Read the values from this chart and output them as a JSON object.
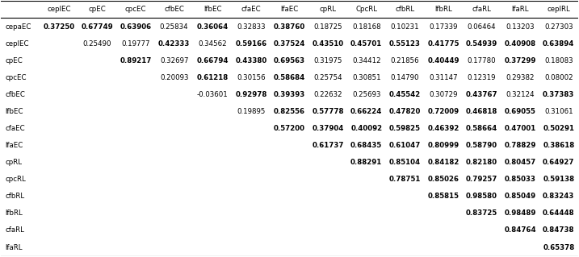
{
  "col_headers": [
    "ceplEC",
    "cpEC",
    "cpcEC",
    "cfbEC",
    "lfbEC",
    "cfaEC",
    "lfaEC",
    "cpRL",
    "CpcRL",
    "cfbRL",
    "lfbRL",
    "cfaRL",
    "lfaRL",
    "ceplRL"
  ],
  "row_headers": [
    "cepaEC",
    "ceplEC",
    "cpEC",
    "cpcEC",
    "cfbEC",
    "lfbEC",
    "cfaEC",
    "lfaEC",
    "cpRL",
    "cpcRL",
    "cfbRL",
    "lfbRL",
    "cfaRL",
    "lfaRL"
  ],
  "data": [
    [
      "0.37250",
      "0.67749",
      "0.63906",
      "0.25834",
      "0.36064",
      "0.32833",
      "0.38760",
      "0.18725",
      "0.18168",
      "0.10231",
      "0.17339",
      "0.06464",
      "0.13203",
      "0.27303"
    ],
    [
      "",
      "0.25490",
      "0.19777",
      "0.42333",
      "0.34562",
      "0.59166",
      "0.37524",
      "0.43510",
      "0.45701",
      "0.55123",
      "0.41775",
      "0.54939",
      "0.40908",
      "0.63894"
    ],
    [
      "",
      "",
      "0.89217",
      "0.32697",
      "0.66794",
      "0.43380",
      "0.69563",
      "0.31975",
      "0.34412",
      "0.21856",
      "0.40449",
      "0.17780",
      "0.37299",
      "0.18083"
    ],
    [
      "",
      "",
      "",
      "0.20093",
      "0.61218",
      "0.30156",
      "0.58684",
      "0.25754",
      "0.30851",
      "0.14790",
      "0.31147",
      "0.12319",
      "0.29382",
      "0.08002"
    ],
    [
      "",
      "",
      "",
      "",
      "-0.03601",
      "0.92978",
      "0.39393",
      "0.22632",
      "0.25693",
      "0.45542",
      "0.30729",
      "0.43767",
      "0.32124",
      "0.37383"
    ],
    [
      "",
      "",
      "",
      "",
      "",
      "0.19895",
      "0.82556",
      "0.57778",
      "0.66224",
      "0.47820",
      "0.72009",
      "0.46818",
      "0.69055",
      "0.31061"
    ],
    [
      "",
      "",
      "",
      "",
      "",
      "",
      "0.57200",
      "0.37904",
      "0.40092",
      "0.59825",
      "0.46392",
      "0.58664",
      "0.47001",
      "0.50291"
    ],
    [
      "",
      "",
      "",
      "",
      "",
      "",
      "",
      "0.61737",
      "0.68435",
      "0.61047",
      "0.80999",
      "0.58790",
      "0.78829",
      "0.38618"
    ],
    [
      "",
      "",
      "",
      "",
      "",
      "",
      "",
      "",
      "0.88291",
      "0.85104",
      "0.84182",
      "0.82180",
      "0.80457",
      "0.64927"
    ],
    [
      "",
      "",
      "",
      "",
      "",
      "",
      "",
      "",
      "",
      "0.78751",
      "0.85026",
      "0.79257",
      "0.85033",
      "0.59138"
    ],
    [
      "",
      "",
      "",
      "",
      "",
      "",
      "",
      "",
      "",
      "",
      "0.85815",
      "0.98580",
      "0.85049",
      "0.83243"
    ],
    [
      "",
      "",
      "",
      "",
      "",
      "",
      "",
      "",
      "",
      "",
      "",
      "0.83725",
      "0.98489",
      "0.64448"
    ],
    [
      "",
      "",
      "",
      "",
      "",
      "",
      "",
      "",
      "",
      "",
      "",
      "",
      "0.84764",
      "0.84738"
    ],
    [
      "",
      "",
      "",
      "",
      "",
      "",
      "",
      "",
      "",
      "",
      "",
      "",
      "",
      "0.65378"
    ]
  ],
  "bold_threshold": 0.35,
  "font_size": 6.2,
  "header_font_size": 6.2,
  "line_color": "#000000",
  "line_width": 0.8
}
